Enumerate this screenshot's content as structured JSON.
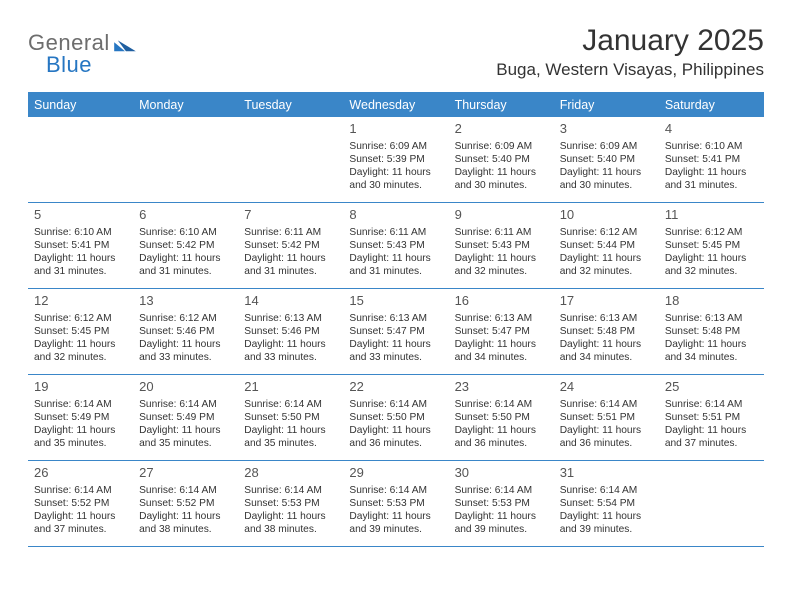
{
  "brand": {
    "part1": "General",
    "part2": "Blue"
  },
  "title": "January 2025",
  "location": "Buga, Western Visayas, Philippines",
  "colors": {
    "accent": "#3a86c8",
    "text": "#333333",
    "muted": "#6d6d6d",
    "background": "#ffffff"
  },
  "dow": [
    "Sunday",
    "Monday",
    "Tuesday",
    "Wednesday",
    "Thursday",
    "Friday",
    "Saturday"
  ],
  "weeks": [
    [
      {
        "n": "",
        "sr": "",
        "ss": "",
        "dl": ""
      },
      {
        "n": "",
        "sr": "",
        "ss": "",
        "dl": ""
      },
      {
        "n": "",
        "sr": "",
        "ss": "",
        "dl": ""
      },
      {
        "n": "1",
        "sr": "6:09 AM",
        "ss": "5:39 PM",
        "dl": "11 hours and 30 minutes."
      },
      {
        "n": "2",
        "sr": "6:09 AM",
        "ss": "5:40 PM",
        "dl": "11 hours and 30 minutes."
      },
      {
        "n": "3",
        "sr": "6:09 AM",
        "ss": "5:40 PM",
        "dl": "11 hours and 30 minutes."
      },
      {
        "n": "4",
        "sr": "6:10 AM",
        "ss": "5:41 PM",
        "dl": "11 hours and 31 minutes."
      }
    ],
    [
      {
        "n": "5",
        "sr": "6:10 AM",
        "ss": "5:41 PM",
        "dl": "11 hours and 31 minutes."
      },
      {
        "n": "6",
        "sr": "6:10 AM",
        "ss": "5:42 PM",
        "dl": "11 hours and 31 minutes."
      },
      {
        "n": "7",
        "sr": "6:11 AM",
        "ss": "5:42 PM",
        "dl": "11 hours and 31 minutes."
      },
      {
        "n": "8",
        "sr": "6:11 AM",
        "ss": "5:43 PM",
        "dl": "11 hours and 31 minutes."
      },
      {
        "n": "9",
        "sr": "6:11 AM",
        "ss": "5:43 PM",
        "dl": "11 hours and 32 minutes."
      },
      {
        "n": "10",
        "sr": "6:12 AM",
        "ss": "5:44 PM",
        "dl": "11 hours and 32 minutes."
      },
      {
        "n": "11",
        "sr": "6:12 AM",
        "ss": "5:45 PM",
        "dl": "11 hours and 32 minutes."
      }
    ],
    [
      {
        "n": "12",
        "sr": "6:12 AM",
        "ss": "5:45 PM",
        "dl": "11 hours and 32 minutes."
      },
      {
        "n": "13",
        "sr": "6:12 AM",
        "ss": "5:46 PM",
        "dl": "11 hours and 33 minutes."
      },
      {
        "n": "14",
        "sr": "6:13 AM",
        "ss": "5:46 PM",
        "dl": "11 hours and 33 minutes."
      },
      {
        "n": "15",
        "sr": "6:13 AM",
        "ss": "5:47 PM",
        "dl": "11 hours and 33 minutes."
      },
      {
        "n": "16",
        "sr": "6:13 AM",
        "ss": "5:47 PM",
        "dl": "11 hours and 34 minutes."
      },
      {
        "n": "17",
        "sr": "6:13 AM",
        "ss": "5:48 PM",
        "dl": "11 hours and 34 minutes."
      },
      {
        "n": "18",
        "sr": "6:13 AM",
        "ss": "5:48 PM",
        "dl": "11 hours and 34 minutes."
      }
    ],
    [
      {
        "n": "19",
        "sr": "6:14 AM",
        "ss": "5:49 PM",
        "dl": "11 hours and 35 minutes."
      },
      {
        "n": "20",
        "sr": "6:14 AM",
        "ss": "5:49 PM",
        "dl": "11 hours and 35 minutes."
      },
      {
        "n": "21",
        "sr": "6:14 AM",
        "ss": "5:50 PM",
        "dl": "11 hours and 35 minutes."
      },
      {
        "n": "22",
        "sr": "6:14 AM",
        "ss": "5:50 PM",
        "dl": "11 hours and 36 minutes."
      },
      {
        "n": "23",
        "sr": "6:14 AM",
        "ss": "5:50 PM",
        "dl": "11 hours and 36 minutes."
      },
      {
        "n": "24",
        "sr": "6:14 AM",
        "ss": "5:51 PM",
        "dl": "11 hours and 36 minutes."
      },
      {
        "n": "25",
        "sr": "6:14 AM",
        "ss": "5:51 PM",
        "dl": "11 hours and 37 minutes."
      }
    ],
    [
      {
        "n": "26",
        "sr": "6:14 AM",
        "ss": "5:52 PM",
        "dl": "11 hours and 37 minutes."
      },
      {
        "n": "27",
        "sr": "6:14 AM",
        "ss": "5:52 PM",
        "dl": "11 hours and 38 minutes."
      },
      {
        "n": "28",
        "sr": "6:14 AM",
        "ss": "5:53 PM",
        "dl": "11 hours and 38 minutes."
      },
      {
        "n": "29",
        "sr": "6:14 AM",
        "ss": "5:53 PM",
        "dl": "11 hours and 39 minutes."
      },
      {
        "n": "30",
        "sr": "6:14 AM",
        "ss": "5:53 PM",
        "dl": "11 hours and 39 minutes."
      },
      {
        "n": "31",
        "sr": "6:14 AM",
        "ss": "5:54 PM",
        "dl": "11 hours and 39 minutes."
      },
      {
        "n": "",
        "sr": "",
        "ss": "",
        "dl": ""
      }
    ]
  ],
  "labels": {
    "sunrise": "Sunrise: ",
    "sunset": "Sunset: ",
    "daylight": "Daylight: "
  }
}
